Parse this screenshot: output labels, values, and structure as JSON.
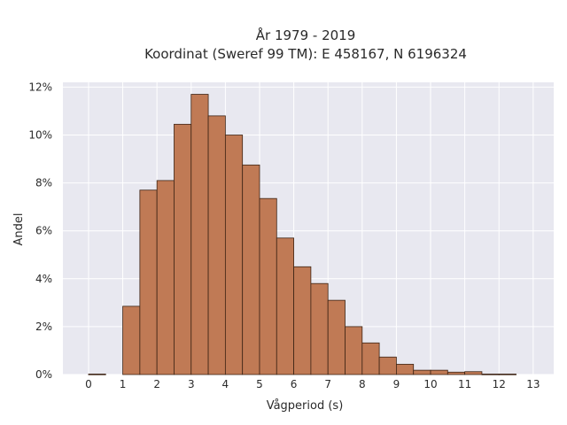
{
  "chart_data": {
    "type": "bar",
    "title_line1": "År 1979 - 2019",
    "title_line2": "Koordinat (Sweref 99 TM): E 458167, N 6196324",
    "xlabel": "Vågperiod (s)",
    "ylabel": "Andel",
    "bin_width": 0.5,
    "bin_starts": [
      0,
      0.5,
      1,
      1.5,
      2,
      2.5,
      3,
      3.5,
      4,
      4.5,
      5,
      5.5,
      6,
      6.5,
      7,
      7.5,
      8,
      8.5,
      9,
      9.5,
      10,
      10.5,
      11,
      11.5,
      12,
      12.5
    ],
    "values": [
      0.02,
      0,
      2.85,
      7.7,
      8.1,
      10.45,
      11.7,
      10.8,
      10.0,
      8.75,
      7.35,
      5.7,
      4.5,
      3.8,
      3.1,
      2.0,
      1.32,
      0.73,
      0.43,
      0.18,
      0.18,
      0.1,
      0.12,
      0.02,
      0.02,
      0
    ],
    "xlim": [
      -0.75,
      13.6
    ],
    "ylim": [
      0,
      12.2
    ],
    "xticks": [
      "0",
      "1",
      "2",
      "3",
      "4",
      "5",
      "6",
      "7",
      "8",
      "9",
      "10",
      "11",
      "12",
      "13"
    ],
    "yticks": [
      "0%",
      "2%",
      "4%",
      "6%",
      "8%",
      "10%",
      "12%"
    ],
    "ytick_values": [
      0,
      2,
      4,
      6,
      8,
      10,
      12
    ],
    "grid": true,
    "colors": {
      "bar": "#c07a55",
      "edge": "#3d2415",
      "plot_bg": "#e8e8f0",
      "grid": "#ffffff"
    }
  }
}
